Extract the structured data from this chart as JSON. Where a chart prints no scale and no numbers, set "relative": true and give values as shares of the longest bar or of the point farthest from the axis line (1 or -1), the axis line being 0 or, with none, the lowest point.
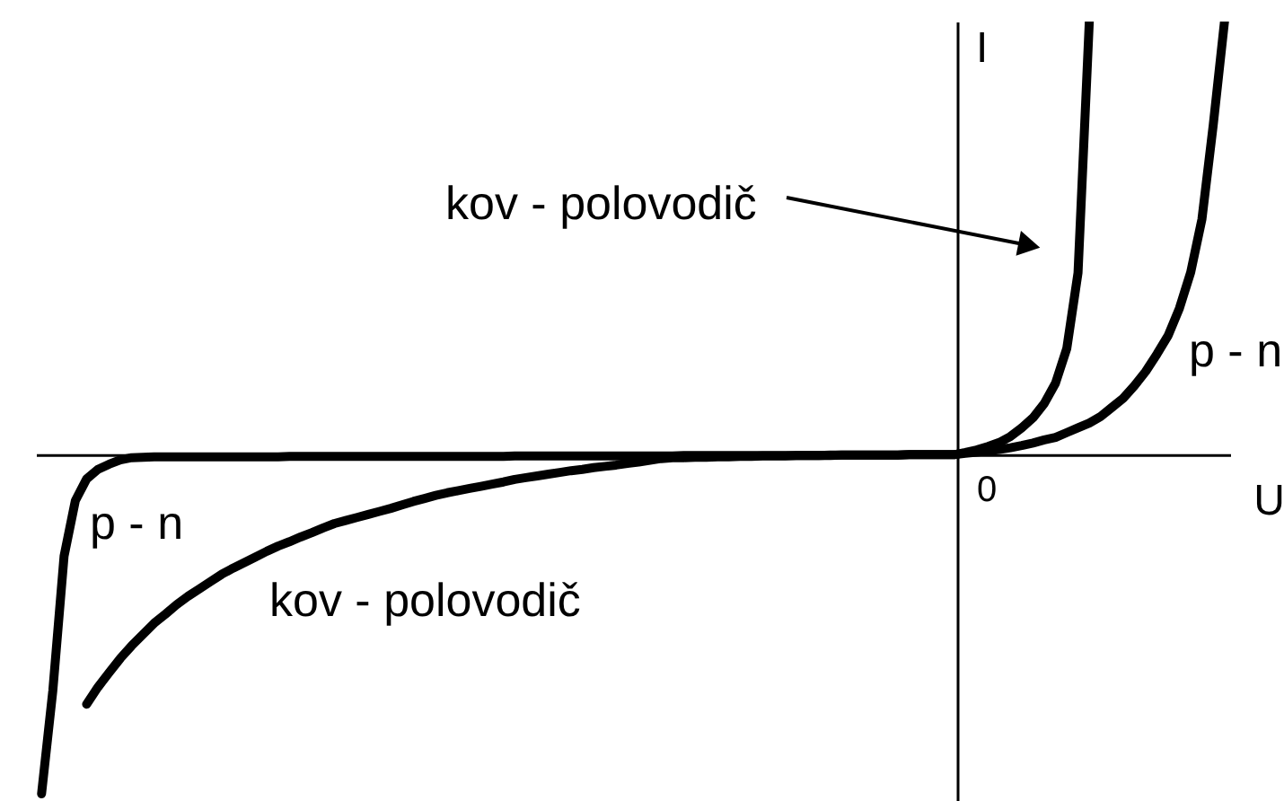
{
  "chart_data": {
    "type": "line",
    "relative": true,
    "xlabel": "U",
    "ylabel": "I",
    "line_style": "solid",
    "annotations": [
      "0"
    ],
    "categories": [
      null,
      null,
      null,
      null,
      null,
      null,
      null,
      null,
      null,
      null,
      null,
      null,
      null,
      null,
      null,
      null,
      null,
      null,
      null,
      null,
      null,
      null,
      null,
      null,
      null,
      null,
      null,
      null,
      null,
      null,
      null,
      null,
      null,
      null,
      null,
      null,
      null,
      null,
      null,
      null,
      null,
      null,
      null,
      null,
      null,
      null,
      null,
      null,
      null,
      null,
      null,
      null,
      null,
      null,
      null,
      null,
      null,
      null,
      null,
      null,
      null,
      null,
      null,
      null,
      null,
      null,
      null,
      null,
      null,
      null,
      null,
      null,
      null,
      null,
      null,
      null,
      null,
      null,
      null,
      null,
      null,
      null,
      null,
      null,
      null,
      null,
      null,
      null,
      null,
      null,
      null,
      null,
      null,
      null,
      null,
      null,
      null,
      null,
      null,
      null,
      null,
      null,
      null,
      null,
      null,
      null
    ],
    "series": [
      {
        "name": "kov - polovodič",
        "color": "#000000",
        "values": [
          null,
          null,
          null,
          null,
          -0.576,
          -0.537,
          -0.503,
          -0.47,
          -0.441,
          -0.415,
          -0.389,
          -0.368,
          -0.346,
          -0.327,
          -0.31,
          -0.293,
          -0.276,
          -0.262,
          -0.249,
          -0.236,
          -0.223,
          -0.211,
          -0.201,
          -0.19,
          -0.18,
          -0.169,
          -0.159,
          -0.152,
          -0.145,
          -0.138,
          -0.131,
          -0.124,
          -0.116,
          -0.108,
          -0.101,
          -0.094,
          -0.088,
          -0.083,
          -0.078,
          -0.073,
          -0.068,
          -0.063,
          -0.057,
          -0.053,
          -0.049,
          -0.045,
          -0.041,
          -0.037,
          -0.034,
          -0.03,
          -0.027,
          -0.024,
          -0.02,
          -0.017,
          -0.013,
          -0.009,
          -0.007,
          -0.007,
          -0.006,
          -0.006,
          -0.005,
          -0.005,
          -0.004,
          -0.004,
          -0.003,
          -0.003,
          -0.003,
          -0.002,
          -0.002,
          -0.002,
          -0.002,
          -0.001,
          -0.001,
          -0.001,
          -0.001,
          -0.001,
          -0.001,
          0,
          0,
          0,
          0,
          0,
          0.005,
          0.011,
          0.019,
          0.028,
          0.042,
          0.062,
          0.085,
          0.118,
          0.165,
          0.245,
          0.42,
          1,
          null,
          null,
          null,
          null,
          null,
          null,
          null,
          null,
          null,
          null,
          null,
          null
        ]
      },
      {
        "name": "p - n",
        "color": "#000000",
        "values": [
          -0.783,
          -0.545,
          -0.234,
          -0.106,
          -0.056,
          -0.034,
          -0.022,
          -0.012,
          -0.007,
          -0.006,
          -0.005,
          -0.005,
          -0.005,
          -0.005,
          -0.005,
          -0.005,
          -0.005,
          -0.005,
          -0.005,
          -0.005,
          -0.005,
          -0.005,
          -0.004,
          -0.004,
          -0.004,
          -0.004,
          -0.004,
          -0.004,
          -0.004,
          -0.004,
          -0.004,
          -0.004,
          -0.004,
          -0.004,
          -0.004,
          -0.004,
          -0.004,
          -0.004,
          -0.004,
          -0.004,
          -0.004,
          -0.004,
          -0.003,
          -0.003,
          -0.003,
          -0.003,
          -0.003,
          -0.003,
          -0.003,
          -0.003,
          -0.003,
          -0.003,
          -0.003,
          -0.003,
          -0.003,
          -0.003,
          -0.003,
          -0.002,
          -0.002,
          -0.002,
          -0.002,
          -0.002,
          -0.002,
          -0.002,
          -0.002,
          -0.002,
          -0.002,
          -0.002,
          -0.002,
          -0.002,
          -0.001,
          -0.001,
          -0.001,
          -0.001,
          -0.001,
          -0.001,
          -0.001,
          0,
          0,
          0,
          0,
          0,
          0.003,
          0.006,
          0.009,
          0.012,
          0.016,
          0.021,
          0.027,
          0.034,
          0.04,
          0.051,
          0.062,
          0.073,
          0.088,
          0.109,
          0.13,
          0.159,
          0.192,
          0.232,
          0.275,
          0.338,
          0.421,
          0.544,
          0.761,
          1
        ]
      }
    ]
  }
}
